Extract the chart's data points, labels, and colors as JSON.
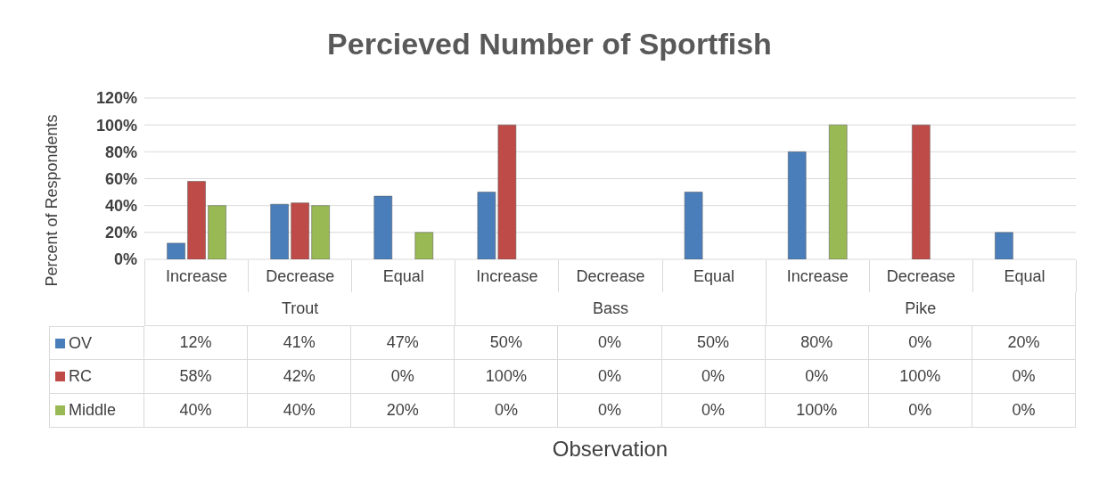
{
  "chart_data": {
    "type": "bar",
    "title": "Percieved Number of Sportfish",
    "ylabel": "Percent of Respondents",
    "categories": [
      "Increase",
      "Decrease",
      "Equal",
      "Increase",
      "Decrease",
      "Equal",
      "Increase",
      "Decrease",
      "Equal"
    ],
    "annotations": [
      "Trout",
      "Bass",
      "Pike",
      "Observation"
    ],
    "series": [
      {
        "name": "OV",
        "color": "#4a7ebb",
        "values": [
          12,
          41,
          47,
          50,
          0,
          50,
          80,
          0,
          20
        ],
        "value_labels": [
          "12%",
          "41%",
          "47%",
          "50%",
          "0%",
          "50%",
          "80%",
          "0%",
          "20%"
        ]
      },
      {
        "name": "RC",
        "color": "#be4b48",
        "values": [
          58,
          42,
          0,
          100,
          0,
          0,
          0,
          100,
          0
        ],
        "value_labels": [
          "58%",
          "42%",
          "0%",
          "100%",
          "0%",
          "0%",
          "0%",
          "100%",
          "0%"
        ]
      },
      {
        "name": "Middle",
        "color": "#98b954",
        "values": [
          40,
          40,
          20,
          0,
          0,
          0,
          100,
          0,
          0
        ],
        "value_labels": [
          "40%",
          "40%",
          "20%",
          "0%",
          "0%",
          "0%",
          "100%",
          "0%",
          "0%"
        ]
      }
    ],
    "ylim": [
      0,
      120
    ],
    "yticks": [
      {
        "value": 0,
        "label": "0%"
      },
      {
        "value": 20,
        "label": "20%"
      },
      {
        "value": 40,
        "label": "40%"
      },
      {
        "value": 60,
        "label": "60%"
      },
      {
        "value": 80,
        "label": "80%"
      },
      {
        "value": 100,
        "label": "100%"
      },
      {
        "value": 120,
        "label": "120%"
      }
    ],
    "grid": "y",
    "legend": "bottom"
  }
}
